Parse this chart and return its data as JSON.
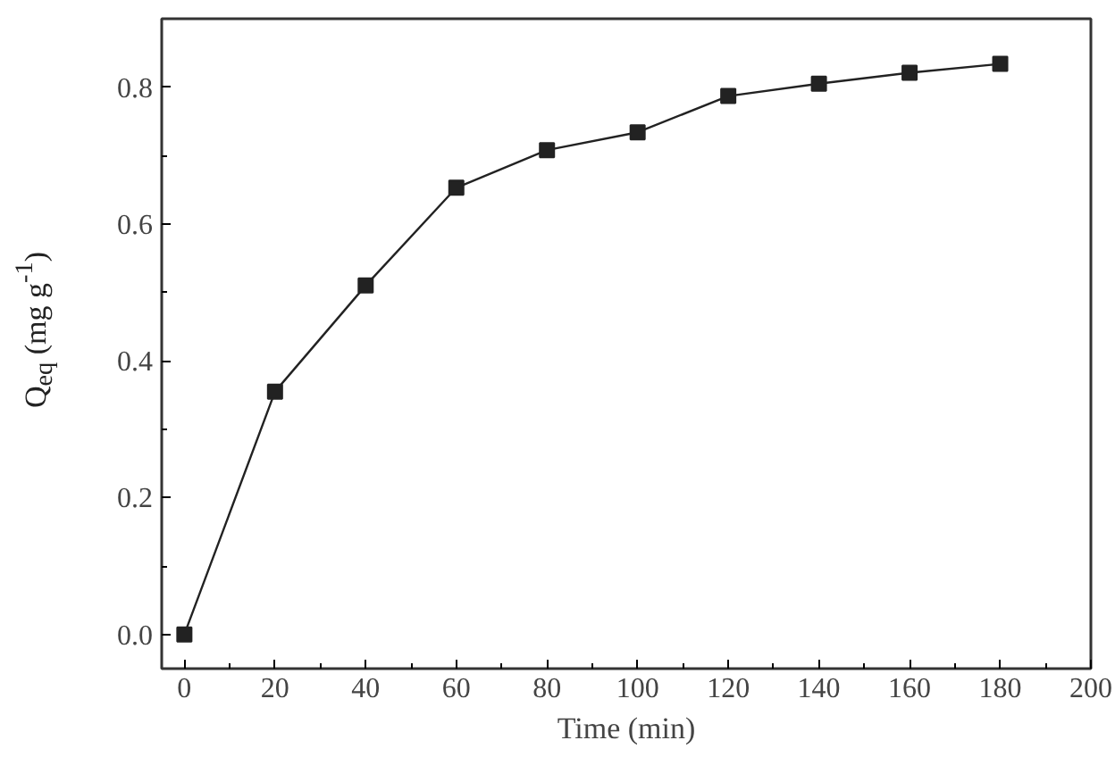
{
  "chart_data": {
    "type": "line",
    "xlabel": "Time (min)",
    "ylabel": "Q$_{eq}$ (mg g$^{-1}$)",
    "x": [
      0,
      20,
      40,
      60,
      80,
      100,
      120,
      140,
      160,
      180
    ],
    "series": [
      {
        "color": "#222222",
        "values": [
          0.0,
          0.355,
          0.51,
          0.653,
          0.708,
          0.734,
          0.787,
          0.805,
          0.821,
          0.834
        ]
      }
    ],
    "xlim": [
      -5,
      200
    ],
    "ylim": [
      -0.05,
      0.9
    ],
    "xticks": [
      0,
      20,
      40,
      60,
      80,
      100,
      120,
      140,
      160,
      180,
      200
    ],
    "yticks": [
      {
        "value": 0,
        "label": "0.0"
      },
      {
        "value": 0.2,
        "label": "0.2"
      },
      {
        "value": 0.4,
        "label": "0.4"
      },
      {
        "value": 0.6,
        "label": "0.6"
      },
      {
        "value": 0.8,
        "label": "0.8"
      }
    ],
    "marker": "square",
    "grid": false,
    "line_style": "solid"
  }
}
